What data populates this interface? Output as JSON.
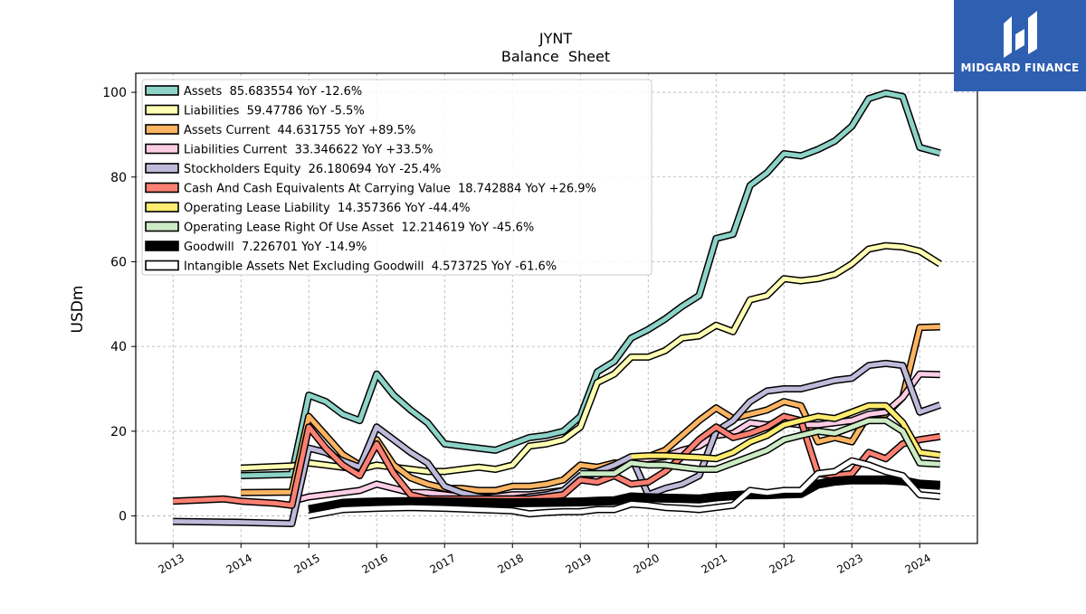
{
  "brand": {
    "name": "MIDGARD FINANCE",
    "color": "#2f5fb0"
  },
  "chart_data": {
    "type": "line",
    "title": "JYNT",
    "subtitle": "Balance  Sheet",
    "xlabel": "",
    "ylabel": "USDm",
    "xlim": [
      2012.45,
      2024.85
    ],
    "ylim": [
      -6.5,
      104.5
    ],
    "yticks": [
      0,
      20,
      40,
      60,
      80,
      100
    ],
    "xticks": [
      2013,
      2014,
      2015,
      2016,
      2017,
      2018,
      2019,
      2020,
      2021,
      2022,
      2023,
      2024
    ],
    "grid": true,
    "legend_position": "top-left",
    "series": [
      {
        "name": "Assets",
        "legend": "Assets  85.683554 YoY -12.6%",
        "color": "#8dd3c7",
        "outline": "#000000",
        "width": 5,
        "x": [
          2014.0,
          2014.75,
          2015.0,
          2015.25,
          2015.5,
          2015.75,
          2016.0,
          2016.25,
          2016.5,
          2016.75,
          2017.0,
          2017.25,
          2017.5,
          2017.75,
          2018.0,
          2018.25,
          2018.5,
          2018.75,
          2019.0,
          2019.25,
          2019.5,
          2019.75,
          2020.0,
          2020.25,
          2020.5,
          2020.75,
          2021.0,
          2021.25,
          2021.5,
          2021.75,
          2022.0,
          2022.25,
          2022.5,
          2022.75,
          2023.0,
          2023.25,
          2023.5,
          2023.75,
          2024.0,
          2024.3
        ],
        "y": [
          9.5,
          9.8,
          28.5,
          27.0,
          24.0,
          22.5,
          33.5,
          28.5,
          25.0,
          22.0,
          17.0,
          16.5,
          16.0,
          15.5,
          17.0,
          18.5,
          19.0,
          20.0,
          23.5,
          34.0,
          36.5,
          42.0,
          44.0,
          46.5,
          49.5,
          52.0,
          65.5,
          66.5,
          78.0,
          81.0,
          85.5,
          85.0,
          86.5,
          88.5,
          92.0,
          98.5,
          99.8,
          99.0,
          87.0,
          85.68
        ]
      },
      {
        "name": "Liabilities",
        "legend": "Liabilities  59.47786 YoY -5.5%",
        "color": "#ffffb3",
        "outline": "#000000",
        "width": 5,
        "x": [
          2014.0,
          2014.75,
          2015.0,
          2015.25,
          2015.5,
          2015.75,
          2016.0,
          2016.25,
          2016.5,
          2016.75,
          2017.0,
          2017.25,
          2017.5,
          2017.75,
          2018.0,
          2018.25,
          2018.5,
          2018.75,
          2019.0,
          2019.25,
          2019.5,
          2019.75,
          2020.0,
          2020.25,
          2020.5,
          2020.75,
          2021.0,
          2021.25,
          2021.5,
          2021.75,
          2022.0,
          2022.25,
          2022.5,
          2022.75,
          2023.0,
          2023.25,
          2023.5,
          2023.75,
          2024.0,
          2024.3
        ],
        "y": [
          11.3,
          11.8,
          12.5,
          12.0,
          11.5,
          11.0,
          12.0,
          11.5,
          11.0,
          10.5,
          10.5,
          11.0,
          11.5,
          11.0,
          12.0,
          16.5,
          17.0,
          18.0,
          21.0,
          31.5,
          33.5,
          37.5,
          37.5,
          39.0,
          42.0,
          42.5,
          45.0,
          43.5,
          51.0,
          52.0,
          56.0,
          55.5,
          56.0,
          57.0,
          59.5,
          63.0,
          63.8,
          63.5,
          62.5,
          59.48
        ]
      },
      {
        "name": "Assets Current",
        "legend": "Assets Current  44.631755 YoY +89.5%",
        "color": "#fdb462",
        "outline": "#000000",
        "width": 5,
        "x": [
          2014.0,
          2014.75,
          2015.0,
          2015.25,
          2015.5,
          2015.75,
          2016.0,
          2016.25,
          2016.5,
          2016.75,
          2017.0,
          2017.25,
          2017.5,
          2017.75,
          2018.0,
          2018.25,
          2018.5,
          2018.75,
          2019.0,
          2019.25,
          2019.5,
          2019.75,
          2020.0,
          2020.25,
          2020.5,
          2020.75,
          2021.0,
          2021.25,
          2021.5,
          2021.75,
          2022.0,
          2022.25,
          2022.5,
          2022.75,
          2023.0,
          2023.25,
          2023.5,
          2023.75,
          2024.0,
          2024.3
        ],
        "y": [
          5.5,
          5.6,
          23.5,
          19.0,
          14.5,
          12.0,
          18.0,
          12.0,
          9.0,
          7.5,
          6.5,
          6.5,
          6.0,
          6.0,
          7.0,
          7.0,
          7.5,
          8.5,
          12.0,
          11.5,
          12.5,
          12.5,
          14.0,
          15.5,
          19.0,
          22.5,
          25.5,
          23.0,
          24.0,
          25.0,
          27.0,
          26.0,
          17.5,
          18.5,
          17.5,
          24.0,
          24.0,
          28.0,
          44.5,
          44.63
        ]
      },
      {
        "name": "Liabilities Current",
        "legend": "Liabilities Current  33.346622 YoY +33.5%",
        "color": "#fccde5",
        "outline": "#000000",
        "width": 5,
        "x": [
          2014.75,
          2015.0,
          2015.25,
          2015.5,
          2015.75,
          2016.0,
          2016.25,
          2016.5,
          2016.75,
          2017.0,
          2017.25,
          2017.5,
          2017.75,
          2018.0,
          2018.25,
          2018.5,
          2018.75,
          2019.0,
          2019.25,
          2019.5,
          2019.75,
          2020.0,
          2020.25,
          2020.5,
          2020.75,
          2021.0,
          2021.25,
          2021.5,
          2021.75,
          2022.0,
          2022.25,
          2022.5,
          2022.75,
          2023.0,
          2023.25,
          2023.5,
          2023.75,
          2024.0,
          2024.3
        ],
        "y": [
          3.5,
          4.5,
          5.0,
          5.5,
          6.0,
          7.5,
          6.5,
          5.5,
          5.5,
          5.0,
          4.5,
          4.5,
          4.5,
          5.0,
          5.0,
          5.5,
          6.0,
          8.5,
          10.5,
          11.5,
          13.0,
          13.5,
          14.0,
          15.5,
          16.5,
          19.0,
          19.5,
          22.0,
          21.5,
          22.0,
          21.5,
          21.5,
          22.0,
          22.5,
          24.0,
          24.5,
          28.0,
          33.5,
          33.35
        ]
      },
      {
        "name": "Stockholders Equity",
        "legend": "Stockholders Equity  26.180694 YoY -25.4%",
        "color": "#bebada",
        "outline": "#000000",
        "width": 5,
        "x": [
          2013.0,
          2014.0,
          2014.75,
          2015.0,
          2015.25,
          2015.5,
          2015.75,
          2016.0,
          2016.25,
          2016.5,
          2016.75,
          2017.0,
          2017.25,
          2017.5,
          2017.75,
          2018.0,
          2018.25,
          2018.5,
          2018.75,
          2019.0,
          2019.25,
          2019.5,
          2019.75,
          2020.0,
          2020.25,
          2020.5,
          2020.75,
          2021.0,
          2021.25,
          2021.5,
          2021.75,
          2022.0,
          2022.25,
          2022.5,
          2022.75,
          2023.0,
          2023.25,
          2023.5,
          2023.75,
          2024.0,
          2024.3
        ],
        "y": [
          -1.3,
          -1.5,
          -1.8,
          16.0,
          15.0,
          13.0,
          11.5,
          21.0,
          18.0,
          15.0,
          12.5,
          7.0,
          5.5,
          4.5,
          4.0,
          4.0,
          4.5,
          5.0,
          6.0,
          9.5,
          10.5,
          12.0,
          14.0,
          5.0,
          6.5,
          7.5,
          9.5,
          20.0,
          22.5,
          27.0,
          29.5,
          30.0,
          30.0,
          31.0,
          32.0,
          32.5,
          35.5,
          36.0,
          35.5,
          24.5,
          26.18
        ]
      },
      {
        "name": "Cash And Cash Equivalents At Carrying Value",
        "legend": "Cash And Cash Equivalents At Carrying Value  18.742884 YoY +26.9%",
        "color": "#fb8072",
        "outline": "#000000",
        "width": 5,
        "x": [
          2013.0,
          2013.75,
          2014.0,
          2014.5,
          2014.75,
          2015.0,
          2015.25,
          2015.5,
          2015.75,
          2016.0,
          2016.25,
          2016.5,
          2016.75,
          2017.0,
          2017.25,
          2017.5,
          2017.75,
          2018.0,
          2018.25,
          2018.5,
          2018.75,
          2019.0,
          2019.25,
          2019.5,
          2019.75,
          2020.0,
          2020.25,
          2020.5,
          2020.75,
          2021.0,
          2021.25,
          2021.5,
          2021.75,
          2022.0,
          2022.25,
          2022.5,
          2022.75,
          2023.0,
          2023.25,
          2023.5,
          2023.75,
          2024.0,
          2024.3
        ],
        "y": [
          3.5,
          4.0,
          3.5,
          3.0,
          2.5,
          21.0,
          16.0,
          12.0,
          9.5,
          17.0,
          10.0,
          5.0,
          4.0,
          4.0,
          4.0,
          4.0,
          4.0,
          4.0,
          4.0,
          4.5,
          5.0,
          8.5,
          8.0,
          9.5,
          7.5,
          8.0,
          10.5,
          14.0,
          18.0,
          21.0,
          18.5,
          19.5,
          21.0,
          23.5,
          22.5,
          10.0,
          9.5,
          10.0,
          15.0,
          13.5,
          17.0,
          18.0,
          18.74
        ]
      },
      {
        "name": "Operating Lease Liability",
        "legend": "Operating Lease Liability  14.357366 YoY -44.4%",
        "color": "#fdec6f",
        "outline": "#000000",
        "width": 5,
        "x": [
          2019.75,
          2020.0,
          2020.25,
          2020.5,
          2020.75,
          2021.0,
          2021.25,
          2021.5,
          2021.75,
          2022.0,
          2022.25,
          2022.5,
          2022.75,
          2023.0,
          2023.25,
          2023.5,
          2023.75,
          2024.0,
          2024.3
        ],
        "y": [
          14.0,
          14.2,
          14.2,
          14.0,
          13.8,
          13.5,
          15.0,
          17.5,
          19.0,
          21.5,
          22.5,
          23.5,
          23.0,
          24.5,
          26.0,
          26.0,
          22.0,
          15.0,
          14.36
        ]
      },
      {
        "name": "Operating Lease Right Of Use Asset",
        "legend": "Operating Lease Right Of Use Asset  12.214619 YoY -45.6%",
        "color": "#ccebc5",
        "outline": "#000000",
        "width": 5,
        "x": [
          2019.0,
          2019.25,
          2019.5,
          2019.75,
          2020.0,
          2020.25,
          2020.5,
          2020.75,
          2021.0,
          2021.25,
          2021.5,
          2021.75,
          2022.0,
          2022.25,
          2022.5,
          2022.75,
          2023.0,
          2023.25,
          2023.5,
          2023.75,
          2024.0,
          2024.3
        ],
        "y": [
          10.0,
          10.0,
          10.0,
          12.5,
          12.0,
          12.0,
          11.5,
          11.0,
          11.0,
          12.5,
          14.0,
          15.5,
          18.0,
          19.0,
          20.0,
          19.5,
          21.0,
          22.5,
          22.5,
          20.0,
          12.5,
          12.21
        ]
      },
      {
        "name": "Goodwill",
        "legend": "Goodwill  7.226701 YoY -14.9%",
        "color": "#000000",
        "outline": "#000000",
        "width": 7,
        "x": [
          2015.0,
          2015.5,
          2015.75,
          2016.0,
          2016.5,
          2017.0,
          2017.5,
          2018.0,
          2018.5,
          2019.0,
          2019.25,
          2019.5,
          2019.75,
          2020.0,
          2020.25,
          2020.5,
          2020.75,
          2021.0,
          2021.25,
          2021.5,
          2021.75,
          2022.0,
          2022.25,
          2022.5,
          2022.75,
          2023.0,
          2023.25,
          2023.5,
          2023.75,
          2024.0,
          2024.3
        ],
        "y": [
          1.5,
          3.0,
          3.2,
          3.3,
          3.4,
          3.3,
          3.2,
          3.1,
          3.2,
          3.3,
          3.5,
          3.6,
          4.5,
          4.3,
          4.2,
          4.1,
          4.0,
          4.5,
          4.8,
          5.0,
          5.0,
          5.2,
          5.3,
          7.5,
          8.2,
          8.5,
          8.5,
          8.5,
          8.3,
          7.5,
          7.23
        ]
      },
      {
        "name": "Intangible Assets Net Excluding Goodwill",
        "legend": "Intangible Assets Net Excluding Goodwill  4.573725 YoY -61.6%",
        "color": "#ffffff",
        "outline": "#000000",
        "width": 5,
        "x": [
          2015.0,
          2015.5,
          2016.0,
          2016.5,
          2017.0,
          2017.5,
          2018.0,
          2018.25,
          2018.5,
          2018.75,
          2019.0,
          2019.25,
          2019.5,
          2019.75,
          2020.0,
          2020.25,
          2020.5,
          2020.75,
          2021.0,
          2021.25,
          2021.5,
          2021.75,
          2022.0,
          2022.25,
          2022.5,
          2022.75,
          2023.0,
          2023.25,
          2023.5,
          2023.75,
          2024.0,
          2024.3
        ],
        "y": [
          0.0,
          1.5,
          1.8,
          2.0,
          1.8,
          1.5,
          1.2,
          0.5,
          0.8,
          1.0,
          1.0,
          1.5,
          1.5,
          2.8,
          2.5,
          2.0,
          1.8,
          1.5,
          2.0,
          2.5,
          6.0,
          5.5,
          6.0,
          6.0,
          10.0,
          10.5,
          13.0,
          12.0,
          10.5,
          9.5,
          5.0,
          4.57
        ]
      }
    ]
  }
}
